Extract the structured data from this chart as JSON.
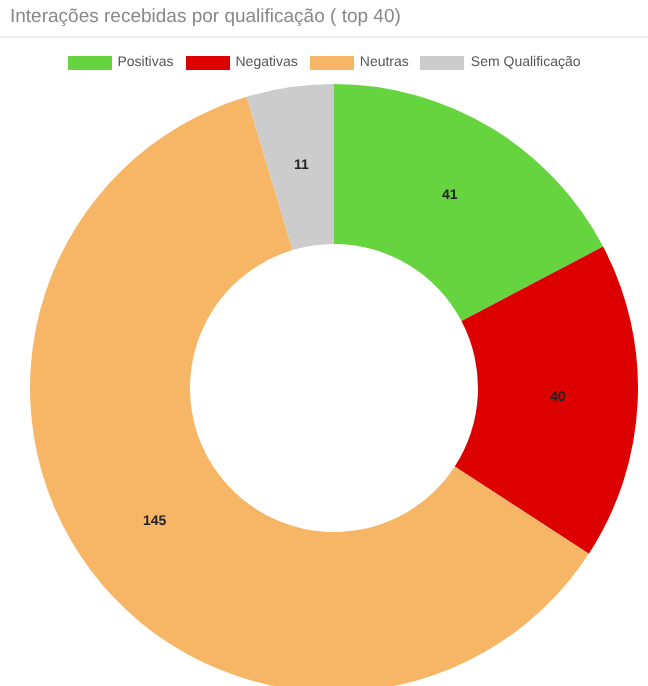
{
  "chart_data": {
    "type": "donut",
    "title": "Interações recebidas por qualificação ( top 40)",
    "categories": [
      "Positivas",
      "Negativas",
      "Neutras",
      "Sem Qualificação"
    ],
    "values": [
      41,
      40,
      145,
      11
    ],
    "colors": [
      "#66d43f",
      "#dd0000",
      "#f7b566",
      "#cccccc"
    ],
    "data_labels": true,
    "legend": "top"
  }
}
